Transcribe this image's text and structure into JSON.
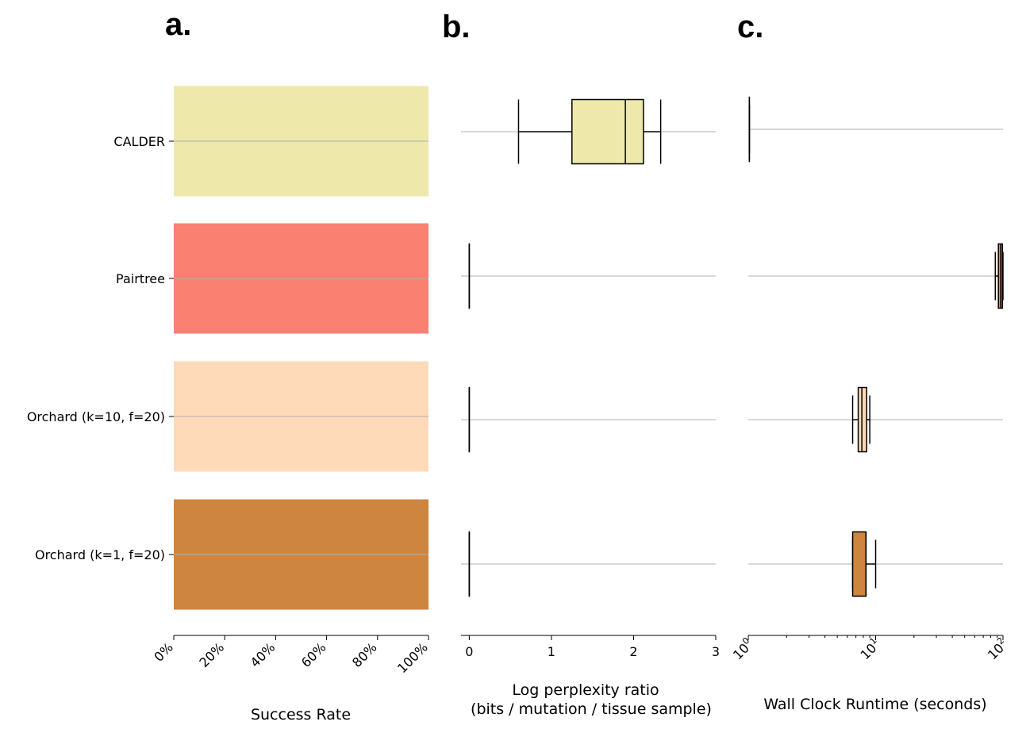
{
  "panel_labels": [
    "a.",
    "b.",
    "c."
  ],
  "colors": {
    "CALDER": "#EEE8AA",
    "Pairtree": "#FA8072",
    "Orchard (k=10, f=20)": "#FFDAB9",
    "Orchard (k=1, f=20)": "#CD853F",
    "gridline": "#b0b0b0",
    "stroke": "#000000"
  },
  "chart_data": [
    {
      "type": "bar",
      "orientation": "horizontal",
      "panel": "a.",
      "categories": [
        "CALDER",
        "Pairtree",
        "Orchard (k=10, f=20)",
        "Orchard (k=1, f=20)"
      ],
      "values": [
        100,
        100,
        100,
        100
      ],
      "xlabel": "Success Rate",
      "ylabel": "",
      "xlim": [
        0,
        100
      ],
      "xticks": [
        "0%",
        "20%",
        "40%",
        "60%",
        "80%",
        "100%"
      ]
    },
    {
      "type": "box",
      "orientation": "horizontal",
      "panel": "b.",
      "categories": [
        "CALDER",
        "Pairtree",
        "Orchard (k=10, f=20)",
        "Orchard (k=1, f=20)"
      ],
      "boxes": [
        {
          "whislo": 0.6,
          "q1": 1.25,
          "med": 1.9,
          "q3": 2.12,
          "whishi": 2.33
        },
        {
          "whislo": 0.0,
          "q1": 0.0,
          "med": 0.0,
          "q3": 0.0,
          "whishi": 0.0
        },
        {
          "whislo": 0.0,
          "q1": 0.0,
          "med": 0.0,
          "q3": 0.0,
          "whishi": 0.0
        },
        {
          "whislo": 0.0,
          "q1": 0.0,
          "med": 0.0,
          "q3": 0.0,
          "whishi": 0.0
        }
      ],
      "xlabel": "Log perplexity ratio",
      "xlabel_line2": "(bits / mutation / tissue sample)",
      "xlim": [
        -0.1,
        3
      ],
      "xticks": [
        "0",
        "1",
        "2",
        "3"
      ]
    },
    {
      "type": "box",
      "orientation": "horizontal",
      "scale": "log",
      "panel": "c.",
      "categories": [
        "CALDER",
        "Pairtree",
        "Orchard (k=10, f=20)",
        "Orchard (k=1, f=20)"
      ],
      "boxes": [
        {
          "whislo": 1.02,
          "q1": 1.02,
          "med": 1.02,
          "q3": 1.02,
          "whishi": 1.02
        },
        {
          "whislo": 87,
          "q1": 92,
          "med": 96,
          "q3": 99,
          "whishi": 100
        },
        {
          "whislo": 6.6,
          "q1": 7.3,
          "med": 7.8,
          "q3": 8.5,
          "whishi": 9.0
        },
        {
          "whislo": 6.6,
          "q1": 6.6,
          "med": 8.4,
          "q3": 8.4,
          "whishi": 10.0
        }
      ],
      "xlabel": "Wall Clock Runtime (seconds)",
      "xlim": [
        1,
        100
      ],
      "xtick_base": "10",
      "xtick_exponents": [
        "0",
        "1",
        "2"
      ]
    }
  ]
}
